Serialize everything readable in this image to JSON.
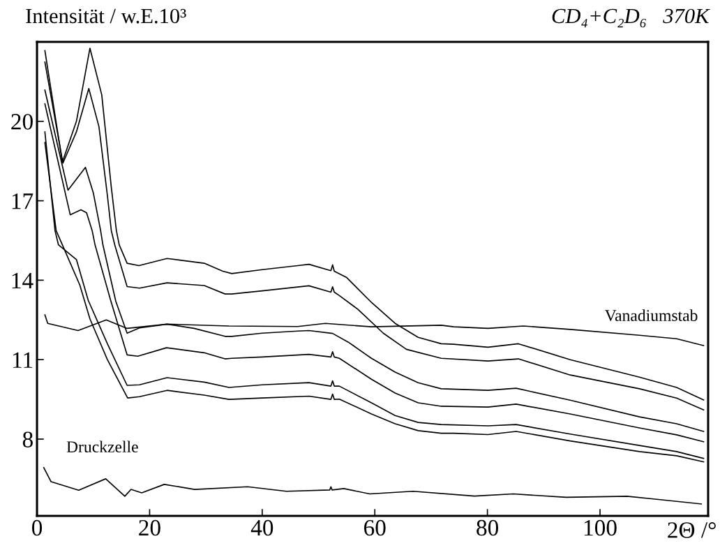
{
  "chart_data": {
    "type": "line",
    "title": "CD₄+C₂D₆   370K",
    "ylabel": "Intensität / w.E.10³",
    "xlabel": "2Θ /°",
    "xlim": [
      0,
      119.2
    ],
    "xticks": [
      0,
      20,
      40,
      60,
      80,
      100
    ],
    "ylim": [
      5.1,
      23.0
    ],
    "yticks": [
      8,
      11,
      14,
      17,
      20
    ],
    "grid": false,
    "series": [
      {
        "color": "#000000",
        "x": [
          1.4,
          4.5,
          7.0,
          9.4,
          11.5,
          13.2,
          14.1,
          14.6,
          16.0,
          18.1,
          23.1,
          29.7,
          33.0,
          34.6,
          40.0,
          46.3,
          48.3,
          52.2,
          52.5,
          52.8,
          55.0,
          59.4,
          63.6,
          67.7,
          71.8,
          74.0,
          80.1,
          85.5,
          94.7,
          107.0,
          113.6,
          118.4
        ],
        "values": [
          22.67,
          18.46,
          20.0,
          22.76,
          21.0,
          17.5,
          15.87,
          15.34,
          14.64,
          14.55,
          14.82,
          14.64,
          14.34,
          14.25,
          14.4,
          14.55,
          14.6,
          14.36,
          14.58,
          14.34,
          14.1,
          13.16,
          12.37,
          11.84,
          11.6,
          11.58,
          11.47,
          11.6,
          11.0,
          10.34,
          9.95,
          9.48
        ]
      },
      {
        "color": "#000000",
        "x": [
          1.4,
          4.6,
          7.0,
          9.2,
          11.0,
          12.5,
          13.2,
          13.8,
          16.0,
          18.2,
          23.1,
          29.7,
          33.4,
          34.6,
          40.0,
          48.3,
          52.2,
          52.5,
          52.8,
          53.7,
          57.0,
          61.5,
          65.6,
          71.8,
          80.1,
          85.5,
          94.7,
          107.0,
          113.6,
          118.4
        ],
        "values": [
          22.24,
          18.42,
          19.6,
          21.24,
          19.8,
          17.2,
          15.87,
          15.34,
          13.76,
          13.7,
          13.9,
          13.8,
          13.48,
          13.48,
          13.6,
          13.79,
          13.55,
          13.75,
          13.55,
          13.42,
          12.9,
          12.0,
          11.39,
          11.05,
          10.95,
          11.03,
          10.42,
          9.9,
          9.55,
          9.1
        ]
      },
      {
        "color": "#000000",
        "x": [
          1.4,
          5.5,
          8.6,
          10.0,
          11.3,
          11.7,
          14.0,
          16.0,
          18.2,
          23.1,
          27.9,
          33.4,
          34.6,
          40.0,
          46.3,
          48.3,
          52.5,
          55.3,
          59.4,
          63.6,
          67.7,
          71.8,
          80.1,
          85.1,
          94.7,
          107.0,
          113.6,
          118.4
        ],
        "values": [
          21.18,
          17.4,
          18.26,
          17.3,
          15.87,
          15.34,
          13.2,
          12.0,
          12.2,
          12.34,
          12.18,
          11.88,
          11.88,
          12.0,
          12.08,
          12.1,
          11.99,
          11.66,
          11.05,
          10.53,
          10.13,
          9.9,
          9.84,
          9.92,
          9.47,
          8.84,
          8.58,
          8.29
        ]
      },
      {
        "color": "#000000",
        "x": [
          1.4,
          5.9,
          7.8,
          8.8,
          9.8,
          10.3,
          13.0,
          16.0,
          17.9,
          23.0,
          29.7,
          33.4,
          34.6,
          40.0,
          48.3,
          52.2,
          52.5,
          52.8,
          53.7,
          59.4,
          63.6,
          67.7,
          71.8,
          80.1,
          85.1,
          94.7,
          107.0,
          113.6,
          118.4
        ],
        "values": [
          20.66,
          16.47,
          16.66,
          16.55,
          15.87,
          15.34,
          13.3,
          11.18,
          11.13,
          11.45,
          11.26,
          11.03,
          11.05,
          11.1,
          11.2,
          11.1,
          11.3,
          11.1,
          11.05,
          10.26,
          9.74,
          9.37,
          9.24,
          9.21,
          9.32,
          8.95,
          8.42,
          8.16,
          7.9
        ]
      },
      {
        "color": "#000000",
        "x": [
          1.4,
          3.2,
          3.8,
          7.0,
          9.1,
          12.5,
          16.0,
          18.2,
          23.1,
          29.7,
          34.1,
          40.0,
          48.3,
          52.2,
          52.5,
          52.8,
          53.7,
          59.4,
          63.6,
          67.7,
          71.8,
          80.1,
          85.1,
          94.7,
          107.0,
          113.6,
          118.4
        ],
        "values": [
          19.6,
          15.87,
          15.34,
          14.78,
          13.24,
          11.6,
          10.03,
          10.05,
          10.32,
          10.15,
          9.95,
          10.05,
          10.13,
          10.0,
          10.2,
          10.0,
          10.0,
          9.37,
          8.89,
          8.63,
          8.55,
          8.5,
          8.55,
          8.19,
          7.76,
          7.53,
          7.27
        ]
      },
      {
        "color": "#000000",
        "x": [
          1.4,
          3.4,
          4.5,
          7.6,
          9.4,
          12.5,
          16.1,
          18.2,
          23.1,
          29.7,
          34.1,
          40.0,
          48.3,
          52.2,
          52.5,
          52.8,
          53.7,
          59.4,
          63.6,
          67.7,
          71.8,
          74.0,
          80.1,
          85.1,
          94.7,
          107.0,
          113.6,
          118.4
        ],
        "values": [
          19.2,
          15.87,
          15.34,
          13.82,
          12.54,
          11.0,
          9.55,
          9.6,
          9.84,
          9.66,
          9.5,
          9.55,
          9.62,
          9.5,
          9.7,
          9.5,
          9.51,
          8.95,
          8.58,
          8.32,
          8.22,
          8.22,
          8.17,
          8.29,
          7.93,
          7.53,
          7.37,
          7.14
        ]
      },
      {
        "name": "Vanadiumstab",
        "color": "#000000",
        "x": [
          1.4,
          1.9,
          7.3,
          12.3,
          16.0,
          23.1,
          34.1,
          46.3,
          51.2,
          59.4,
          71.8,
          74.0,
          80.1,
          86.4,
          94.7,
          107.0,
          113.6,
          118.4
        ],
        "values": [
          12.69,
          12.37,
          12.1,
          12.5,
          12.18,
          12.34,
          12.27,
          12.25,
          12.37,
          12.24,
          12.3,
          12.24,
          12.18,
          12.27,
          12.14,
          11.92,
          11.79,
          11.53
        ]
      },
      {
        "name": "Druckzelle",
        "color": "#000000",
        "x": [
          1.2,
          2.5,
          7.4,
          12.2,
          15.6,
          16.7,
          18.6,
          22.6,
          28.0,
          37.4,
          44.3,
          52.0,
          52.2,
          52.4,
          54.5,
          59.1,
          66.8,
          77.7,
          84.6,
          94.0,
          104.8,
          109.5,
          118.0
        ],
        "values": [
          6.92,
          6.39,
          6.07,
          6.5,
          5.84,
          6.1,
          5.97,
          6.29,
          6.1,
          6.2,
          6.03,
          6.08,
          6.2,
          6.08,
          6.13,
          5.93,
          6.03,
          5.85,
          5.93,
          5.8,
          5.84,
          5.74,
          5.55
        ]
      }
    ]
  }
}
